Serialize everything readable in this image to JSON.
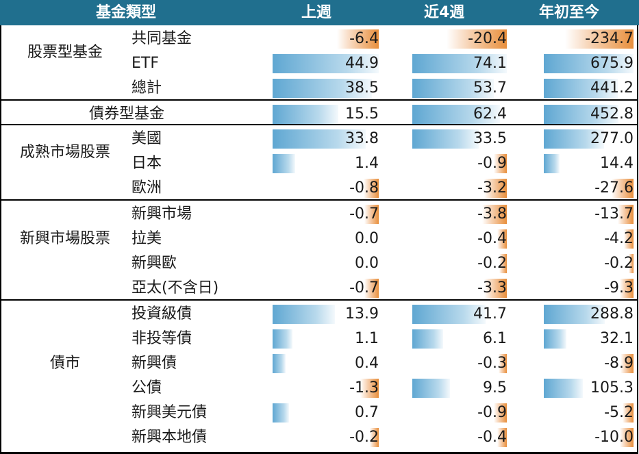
{
  "header": {
    "col0": "基金類型",
    "col1": "上週",
    "col2": "近4週",
    "col3": "年初至今"
  },
  "groups": [
    {
      "label": "股票型基金",
      "rows": [
        {
          "name": "共同基金",
          "v": [
            "-6.4",
            "-20.4",
            "-234.7"
          ]
        },
        {
          "name": "ETF",
          "v": [
            "44.9",
            "74.1",
            "675.9"
          ]
        },
        {
          "name": "總計",
          "v": [
            "38.5",
            "53.7",
            "441.2"
          ]
        }
      ]
    },
    {
      "label": "債券型基金",
      "rows": [
        {
          "name": "",
          "v": [
            "15.5",
            "62.4",
            "452.8"
          ]
        }
      ]
    },
    {
      "label": "成熟市場股票",
      "rows": [
        {
          "name": "美國",
          "v": [
            "33.8",
            "33.5",
            "277.0"
          ]
        },
        {
          "name": "日本",
          "v": [
            "1.4",
            "-0.9",
            "14.4"
          ]
        },
        {
          "name": "歐洲",
          "v": [
            "-0.8",
            "-3.2",
            "-27.6"
          ]
        }
      ]
    },
    {
      "label": "新興市場股票",
      "rows": [
        {
          "name": "新興市場",
          "v": [
            "-0.7",
            "-3.8",
            "-13.7"
          ]
        },
        {
          "name": "拉美",
          "v": [
            "0.0",
            "-0.4",
            "-4.2"
          ]
        },
        {
          "name": "新興歐",
          "v": [
            "0.0",
            "-0.2",
            "-0.2"
          ]
        },
        {
          "name": "亞太(不含日)",
          "v": [
            "-0.7",
            "-3.3",
            "-9.3"
          ]
        }
      ]
    },
    {
      "label": "債市",
      "rows": [
        {
          "name": "投資級債",
          "v": [
            "13.9",
            "41.7",
            "288.8"
          ]
        },
        {
          "name": "非投等債",
          "v": [
            "1.1",
            "6.1",
            "32.1"
          ]
        },
        {
          "name": "新興債",
          "v": [
            "0.4",
            "-0.3",
            "-8.9"
          ]
        },
        {
          "name": "公債",
          "v": [
            "-1.3",
            "9.5",
            "105.3"
          ]
        },
        {
          "name": "新興美元債",
          "v": [
            "0.7",
            "-0.9",
            "-5.2"
          ]
        },
        {
          "name": "新興本地債",
          "v": [
            "-0.2",
            "-0.4",
            "-10.0"
          ]
        }
      ]
    }
  ],
  "colors": {
    "header_bg": "#206f8e",
    "positive": "#5fa7d2",
    "negative": "#e88f3c"
  }
}
